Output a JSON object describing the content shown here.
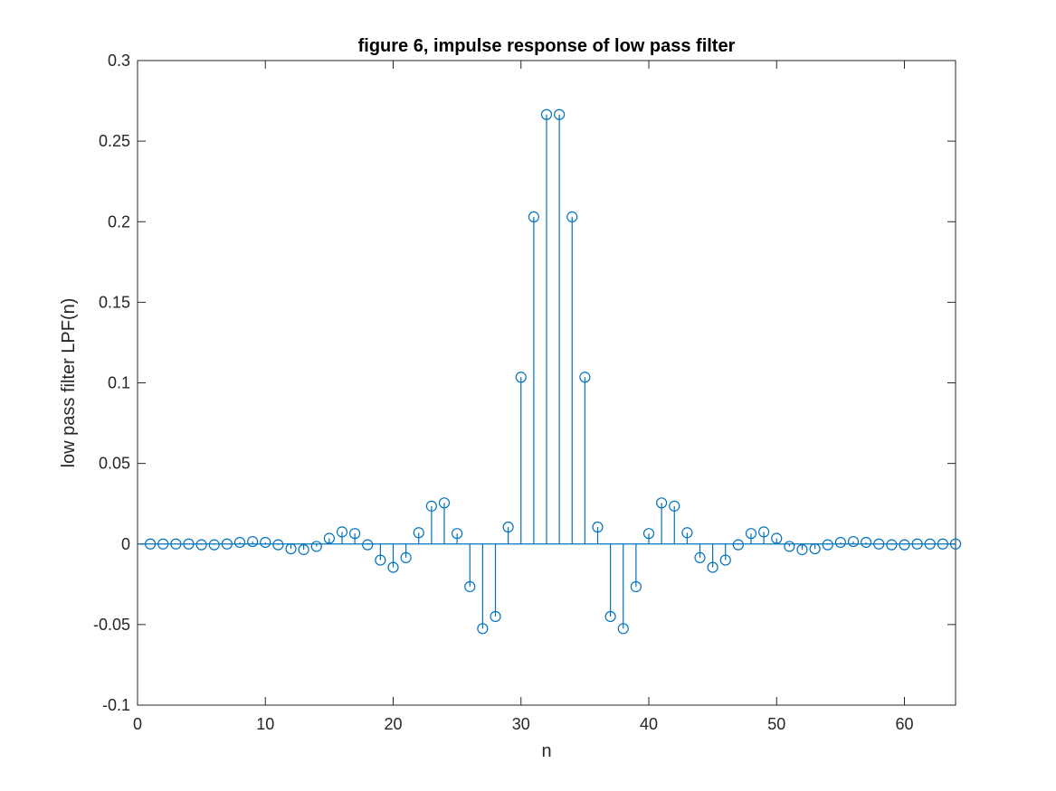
{
  "chart_data": {
    "type": "stem",
    "title": "figure 6, impulse response of low pass filter",
    "xlabel": "n",
    "ylabel": "low pass filter LPF(n)",
    "xlim": [
      0,
      64
    ],
    "ylim": [
      -0.1,
      0.3
    ],
    "xticks": [
      0,
      10,
      20,
      30,
      40,
      50,
      60
    ],
    "xtick_labels": [
      "0",
      "10",
      "20",
      "30",
      "40",
      "50",
      "60"
    ],
    "yticks": [
      -0.1,
      -0.05,
      0,
      0.05,
      0.1,
      0.15,
      0.2,
      0.25,
      0.3
    ],
    "ytick_labels": [
      "-0.1",
      "-0.05",
      "0",
      "0.05",
      "0.1",
      "0.15",
      "0.2",
      "0.25",
      "0.3"
    ],
    "grid": false,
    "marker": "circle",
    "color": "#0072BD",
    "axis_color": "#262626",
    "x": [
      1,
      2,
      3,
      4,
      5,
      6,
      7,
      8,
      9,
      10,
      11,
      12,
      13,
      14,
      15,
      16,
      17,
      18,
      19,
      20,
      21,
      22,
      23,
      24,
      25,
      26,
      27,
      28,
      29,
      30,
      31,
      32,
      33,
      34,
      35,
      36,
      37,
      38,
      39,
      40,
      41,
      42,
      43,
      44,
      45,
      46,
      47,
      48,
      49,
      50,
      51,
      52,
      53,
      54,
      55,
      56,
      57,
      58,
      59,
      60,
      61,
      62,
      63,
      64
    ],
    "values": [
      0,
      0,
      0,
      0,
      -0.0005,
      -0.0005,
      0,
      0.001,
      0.0015,
      0.001,
      -0.0005,
      -0.003,
      -0.0035,
      -0.0015,
      0.0035,
      0.0075,
      0.0065,
      -0.0005,
      -0.01,
      -0.0145,
      -0.0085,
      0.007,
      0.0235,
      0.0255,
      0.0065,
      -0.0265,
      -0.0525,
      -0.045,
      0.0105,
      0.1035,
      0.203,
      0.2665,
      0.2665,
      0.203,
      0.1035,
      0.0105,
      -0.045,
      -0.0525,
      -0.0265,
      0.0065,
      0.0255,
      0.0235,
      0.007,
      -0.0085,
      -0.0145,
      -0.01,
      -0.0005,
      0.0065,
      0.0075,
      0.0035,
      -0.0015,
      -0.0035,
      -0.003,
      -0.0005,
      0.001,
      0.0015,
      0.001,
      0,
      -0.0005,
      -0.0005,
      0,
      0,
      0,
      0
    ]
  }
}
